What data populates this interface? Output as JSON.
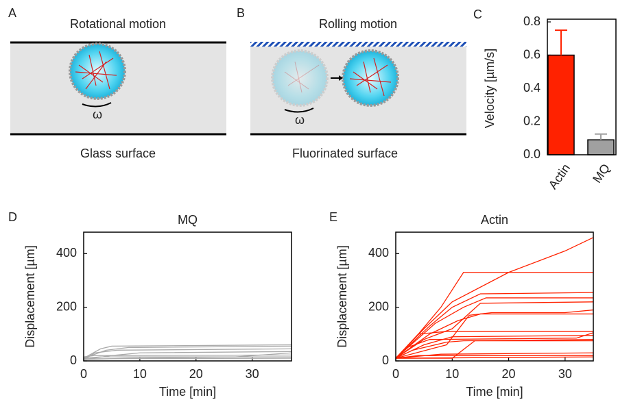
{
  "diagrams": [
    {
      "label": "A",
      "title": "Rotational motion",
      "caption": "Glass surface",
      "symbol": "ω"
    },
    {
      "label": "B",
      "title": "Rolling motion",
      "caption": "Fluorinated surface",
      "symbol": "ω"
    }
  ],
  "chart_data": [
    {
      "type": "bar",
      "label": "C",
      "ylabel": "Velocity [µm/s]",
      "categories": [
        "Actin",
        "MQ"
      ],
      "values": [
        0.6,
        0.09
      ],
      "errors": [
        0.15,
        0.035
      ],
      "colors": [
        "#ff2200",
        "#a0a0a0"
      ],
      "ylim": [
        0,
        0.8
      ],
      "yticks": [
        {
          "value": 0,
          "label": "0.0"
        },
        0.2,
        0.4,
        0.6,
        0.8
      ]
    },
    {
      "type": "line",
      "label": "D",
      "title": "MQ",
      "xlabel": "Time [min]",
      "ylabel": "Displacement [µm]",
      "xlim": [
        0,
        37
      ],
      "xticks": [
        0,
        10,
        20,
        30
      ],
      "ylim": [
        0,
        480
      ],
      "yticks": [
        0,
        200,
        400
      ],
      "series": [
        {
          "color": "#aaaaaa",
          "x": [
            0,
            3,
            5,
            37
          ],
          "values": [
            10,
            45,
            55,
            60
          ]
        },
        {
          "color": "#aaaaaa",
          "x": [
            0,
            4,
            8,
            37
          ],
          "values": [
            10,
            40,
            50,
            55
          ]
        },
        {
          "color": "#aaaaaa",
          "x": [
            0,
            2,
            6,
            37
          ],
          "values": [
            5,
            30,
            40,
            45
          ]
        },
        {
          "color": "#aaaaaa",
          "x": [
            0,
            5,
            10,
            37
          ],
          "values": [
            5,
            20,
            30,
            35
          ]
        },
        {
          "color": "#aaaaaa",
          "x": [
            0,
            2,
            37
          ],
          "values": [
            15,
            20,
            22
          ]
        },
        {
          "color": "#aaaaaa",
          "x": [
            0,
            8,
            27,
            37
          ],
          "values": [
            5,
            10,
            15,
            30
          ]
        },
        {
          "color": "#aaaaaa",
          "x": [
            0,
            3,
            37
          ],
          "values": [
            10,
            15,
            15
          ]
        },
        {
          "color": "#aaaaaa",
          "x": [
            0,
            37
          ],
          "values": [
            8,
            10
          ]
        }
      ]
    },
    {
      "type": "line",
      "label": "E",
      "title": "Actin",
      "xlabel": "Time [min]",
      "ylabel": "Displacement [µm]",
      "xlim": [
        0,
        35
      ],
      "xticks": [
        0,
        10,
        20,
        30
      ],
      "ylim": [
        0,
        480
      ],
      "yticks": [
        0,
        200,
        400
      ],
      "series": [
        {
          "color": "#ff2200",
          "x": [
            0,
            5,
            10,
            20,
            30,
            35
          ],
          "values": [
            10,
            120,
            220,
            330,
            410,
            460
          ]
        },
        {
          "color": "#ff2200",
          "x": [
            0,
            4,
            8,
            12,
            35
          ],
          "values": [
            10,
            100,
            200,
            330,
            330
          ]
        },
        {
          "color": "#ff2200",
          "x": [
            0,
            6,
            10,
            15,
            35
          ],
          "values": [
            10,
            130,
            200,
            250,
            255
          ]
        },
        {
          "color": "#ff2200",
          "x": [
            0,
            7,
            12,
            16,
            35
          ],
          "values": [
            10,
            140,
            200,
            235,
            235
          ]
        },
        {
          "color": "#ff2200",
          "x": [
            0,
            5,
            10,
            15,
            35
          ],
          "values": [
            10,
            80,
            120,
            215,
            220
          ]
        },
        {
          "color": "#ff2200",
          "x": [
            0,
            6,
            11,
            15,
            35
          ],
          "values": [
            10,
            100,
            150,
            175,
            175
          ]
        },
        {
          "color": "#ff2200",
          "x": [
            0,
            9,
            13,
            17,
            30,
            35
          ],
          "values": [
            10,
            60,
            170,
            180,
            180,
            190
          ]
        },
        {
          "color": "#ff2200",
          "x": [
            0,
            4,
            9,
            35
          ],
          "values": [
            10,
            100,
            110,
            110
          ]
        },
        {
          "color": "#ff2200",
          "x": [
            0,
            5,
            10,
            35
          ],
          "values": [
            10,
            60,
            90,
            95
          ]
        },
        {
          "color": "#ff2200",
          "x": [
            0,
            3,
            9,
            12,
            35
          ],
          "values": [
            10,
            40,
            70,
            75,
            80
          ]
        },
        {
          "color": "#ff2200",
          "x": [
            0,
            10,
            14,
            35
          ],
          "values": [
            10,
            10,
            75,
            75
          ]
        },
        {
          "color": "#ff2200",
          "x": [
            0,
            8,
            35
          ],
          "values": [
            10,
            25,
            30
          ]
        },
        {
          "color": "#ff2200",
          "x": [
            0,
            4,
            35
          ],
          "values": [
            10,
            20,
            20
          ]
        },
        {
          "color": "#ff2200",
          "x": [
            0,
            35
          ],
          "values": [
            10,
            15
          ]
        },
        {
          "color": "#ff2200",
          "x": [
            0,
            2,
            6,
            32,
            35
          ],
          "values": [
            10,
            50,
            80,
            85,
            105
          ]
        }
      ]
    }
  ]
}
